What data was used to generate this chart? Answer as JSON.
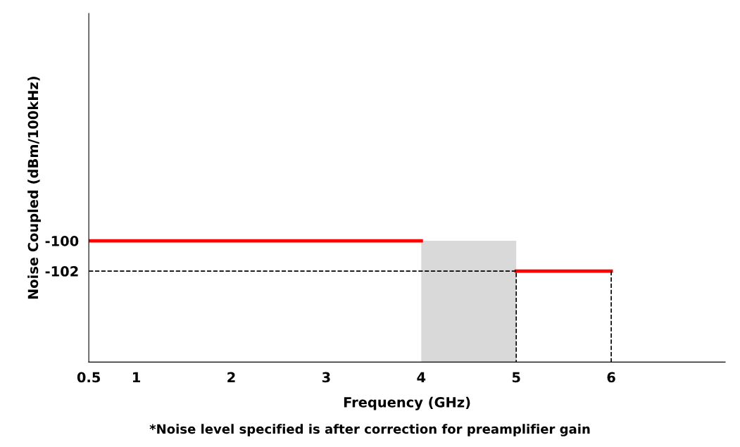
{
  "chart_data": {
    "type": "line",
    "xlabel": "Frequency (GHz)",
    "ylabel": "Noise Coupled (dBm/100kHz)",
    "annotations": [
      "*Noise level specified is after correction for preamplifier gain"
    ],
    "xlim": [
      0.5,
      7.2
    ],
    "xticks": [
      0.5,
      1,
      2,
      3,
      4,
      5,
      6
    ],
    "ylim": [
      -108,
      -85
    ],
    "yticks": [
      -100,
      -102
    ],
    "grid": false,
    "legend": false,
    "series": [
      {
        "type": "bar",
        "color": "#d9d9d9",
        "x": [
          4.5
        ],
        "values": [
          8
        ],
        "base": [
          -108
        ]
      },
      {
        "type": "line",
        "color": "#ff0000",
        "x": [
          0.5,
          4
        ],
        "values": [
          -100,
          -100
        ],
        "line_style": "solid"
      },
      {
        "type": "line",
        "color": "#ff0000",
        "x": [
          5,
          6
        ],
        "values": [
          -102,
          -102
        ],
        "line_style": "solid"
      },
      {
        "type": "line",
        "color": "#000000",
        "x": [
          0.5,
          5,
          5
        ],
        "values": [
          -102,
          -102,
          -108
        ],
        "line_style": "dashed"
      },
      {
        "type": "line",
        "color": "#000000",
        "x": [
          6,
          6
        ],
        "values": [
          -102,
          -108
        ],
        "line_style": "dashed"
      }
    ]
  }
}
